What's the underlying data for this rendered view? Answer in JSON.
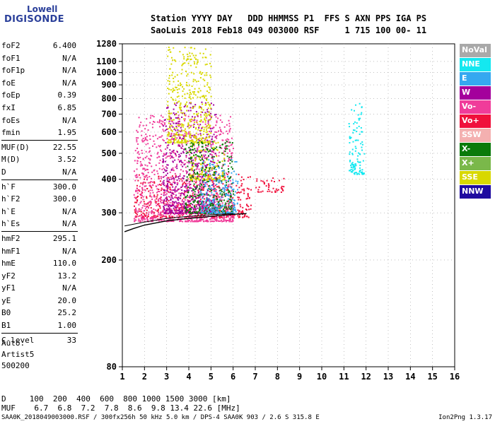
{
  "logo": {
    "line1": "Lowell",
    "line2": "DIGISONDE"
  },
  "header": {
    "labels": "Station YYYY DAY   DDD HHMMSS P1  FFS S AXN PPS IGA PS",
    "values": "SaoLuis 2018 Feb18 049 003000 RSF     1 715 100 00- 11"
  },
  "params": [
    [
      {
        "k": "foF2",
        "v": "6.400"
      },
      {
        "k": "foF1",
        "v": "N/A"
      },
      {
        "k": "foF1p",
        "v": "N/A"
      },
      {
        "k": "foE",
        "v": "N/A"
      },
      {
        "k": "foEp",
        "v": "0.39"
      },
      {
        "k": "fxI",
        "v": "6.85"
      },
      {
        "k": "foEs",
        "v": "N/A"
      },
      {
        "k": "fmin",
        "v": "1.95"
      }
    ],
    [
      {
        "k": "MUF(D)",
        "v": "22.55"
      },
      {
        "k": "M(D)",
        "v": "3.52"
      },
      {
        "k": "D",
        "v": "N/A"
      }
    ],
    [
      {
        "k": "h`F",
        "v": "300.0"
      },
      {
        "k": "h`F2",
        "v": "300.0"
      },
      {
        "k": "h`E",
        "v": "N/A"
      },
      {
        "k": "h`Es",
        "v": "N/A"
      }
    ],
    [
      {
        "k": "hmF2",
        "v": "295.1"
      },
      {
        "k": "hmF1",
        "v": "N/A"
      },
      {
        "k": "hmE",
        "v": "110.0"
      },
      {
        "k": "yF2",
        "v": "13.2"
      },
      {
        "k": "yF1",
        "v": "N/A"
      },
      {
        "k": "yE",
        "v": "20.0"
      },
      {
        "k": "B0",
        "v": "25.2"
      },
      {
        "k": "B1",
        "v": "1.00"
      }
    ],
    [
      {
        "k": "C-level",
        "v": "33"
      }
    ]
  ],
  "auto": {
    "l1": "Auto:",
    "l2": "Artist5",
    "l3": "500200"
  },
  "legend": [
    {
      "label": "NoVal",
      "color": "#a9a9a9"
    },
    {
      "label": "NNE",
      "color": "#14e8f0"
    },
    {
      "label": "E",
      "color": "#35a8f0"
    },
    {
      "label": "W",
      "color": "#a4009c"
    },
    {
      "label": "Vo-",
      "color": "#f03c9a"
    },
    {
      "label": "Vo+",
      "color": "#f0103c"
    },
    {
      "label": "SSW",
      "color": "#f4b0b0"
    },
    {
      "label": "X-",
      "color": "#0a7a0a"
    },
    {
      "label": "X+",
      "color": "#7ab84a"
    },
    {
      "label": "SSE",
      "color": "#d8d800"
    },
    {
      "label": "NNW",
      "color": "#1e0aa0"
    }
  ],
  "footer": {
    "d": "D     100  200  400  600  800 1000 1500 3000 [km]",
    "muf": "MUF    6.7  6.8  7.2  7.8  8.6  9.8 13.4 22.6 [MHz]"
  },
  "bottom": "SAA0K_2018049003000.RSF / 300fx256h 50 kHz 5.0 km / DPS-4 SAA0K 903 / 2.6 S 315.8 E",
  "version": "Ion2Png 1.3.17",
  "chart_data": {
    "type": "scatter",
    "xlim": [
      1,
      16
    ],
    "ylim": [
      80,
      1280
    ],
    "ylog": true,
    "grid": true,
    "x_ticks": [
      1,
      2,
      3,
      4,
      5,
      6,
      7,
      8,
      9,
      10,
      11,
      12,
      13,
      14,
      15,
      16
    ],
    "y_ticks": [
      80,
      200,
      300,
      400,
      500,
      600,
      700,
      800,
      900,
      1000,
      1100,
      1280
    ],
    "series": [
      {
        "color": "#f0103c",
        "region": [
          [
            1.5,
            6.8,
            290,
            420
          ],
          [
            7.0,
            8.3,
            360,
            410
          ]
        ]
      },
      {
        "color": "#f03c9a",
        "region": [
          [
            1.5,
            6.0,
            280,
            700
          ]
        ]
      },
      {
        "color": "#a4009c",
        "region": [
          [
            2.8,
            5.2,
            300,
            780
          ]
        ]
      },
      {
        "color": "#d8d800",
        "region": [
          [
            3.0,
            5.0,
            550,
            1250
          ],
          [
            4.0,
            5.6,
            400,
            560
          ]
        ]
      },
      {
        "color": "#0a7a0a",
        "region": [
          [
            3.8,
            6.0,
            300,
            560
          ]
        ]
      },
      {
        "color": "#35a8f0",
        "region": [
          [
            4.5,
            6.2,
            300,
            480
          ]
        ]
      },
      {
        "color": "#14e8f0",
        "region": [
          [
            11.2,
            11.9,
            420,
            780
          ]
        ]
      }
    ],
    "trace_points": [
      [
        1.1,
        255
      ],
      [
        1.5,
        262
      ],
      [
        2,
        270
      ],
      [
        3,
        280
      ],
      [
        4,
        286
      ],
      [
        5,
        291
      ],
      [
        6,
        296
      ],
      [
        6.6,
        298
      ]
    ],
    "trace2_points": [
      [
        1.1,
        268
      ],
      [
        2,
        277
      ],
      [
        3,
        286
      ],
      [
        4,
        291
      ],
      [
        5,
        295
      ],
      [
        6,
        298
      ]
    ]
  }
}
